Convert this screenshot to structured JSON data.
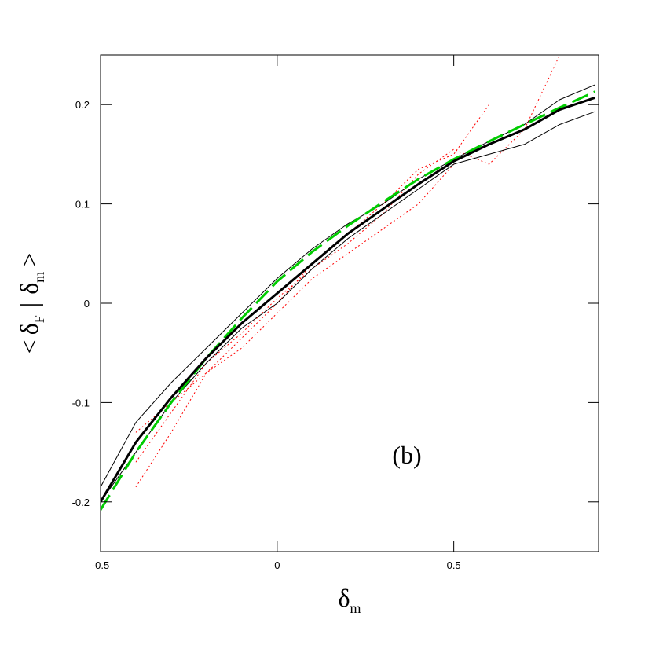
{
  "chart_data": {
    "type": "line",
    "annotation": "(b)",
    "xlabel": [
      "δ",
      "m"
    ],
    "ylabel": [
      "<",
      "δ",
      "F",
      "|",
      "δ",
      "m",
      ">"
    ],
    "x": [
      -0.5,
      -0.4,
      -0.3,
      -0.2,
      -0.1,
      0,
      0.1,
      0.2,
      0.3,
      0.4,
      0.5,
      0.6,
      0.7,
      0.8,
      0.9
    ],
    "xlim": [
      -0.5,
      0.91
    ],
    "ylim": [
      -0.25,
      0.25
    ],
    "xticks": [
      -0.5,
      0,
      0.5
    ],
    "yticks": [
      -0.2,
      -0.1,
      0,
      0.1,
      0.2
    ],
    "series": [
      {
        "color": "#ff0000",
        "style": "dotted",
        "width": 1,
        "values": [
          null,
          -0.16,
          -0.11,
          -0.06,
          -0.03,
          0.005,
          0.035,
          0.06,
          0.09,
          0.13,
          0.155,
          0.14,
          0.175,
          0.25,
          null
        ]
      },
      {
        "color": "#ff0000",
        "style": "dotted",
        "width": 1,
        "values": [
          null,
          -0.13,
          -0.1,
          -0.07,
          -0.045,
          -0.01,
          0.025,
          0.05,
          0.075,
          0.1,
          0.14,
          null,
          null,
          null,
          null
        ]
      },
      {
        "color": "#ff0000",
        "style": "dotted",
        "width": 1,
        "values": [
          null,
          -0.185,
          -0.13,
          -0.07,
          -0.035,
          0,
          0.04,
          0.07,
          0.1,
          0.135,
          0.15,
          0.2,
          null,
          null,
          null
        ]
      },
      {
        "color": "#000000",
        "style": "solid",
        "width": 1,
        "values": [
          -0.185,
          -0.12,
          -0.08,
          -0.045,
          -0.01,
          0.025,
          0.055,
          0.08,
          0.1,
          0.125,
          0.145,
          0.163,
          0.18,
          0.205,
          0.22
        ]
      },
      {
        "color": "#000000",
        "style": "solid",
        "width": 1,
        "values": [
          -0.2,
          -0.15,
          -0.1,
          -0.06,
          -0.025,
          0,
          0.035,
          0.065,
          0.09,
          0.115,
          0.14,
          0.15,
          0.16,
          0.18,
          0.193
        ]
      },
      {
        "color": "#00cc00",
        "style": "dashed",
        "width": 3,
        "values": [
          -0.208,
          -0.15,
          -0.1,
          -0.055,
          -0.015,
          0.022,
          0.052,
          0.078,
          0.102,
          0.125,
          0.145,
          0.163,
          0.18,
          0.197,
          0.213
        ]
      },
      {
        "color": "#000000",
        "style": "solid",
        "width": 3,
        "values": [
          -0.2,
          -0.14,
          -0.095,
          -0.055,
          -0.02,
          0.01,
          0.04,
          0.07,
          0.095,
          0.12,
          0.143,
          0.16,
          0.175,
          0.195,
          0.207
        ]
      }
    ]
  }
}
